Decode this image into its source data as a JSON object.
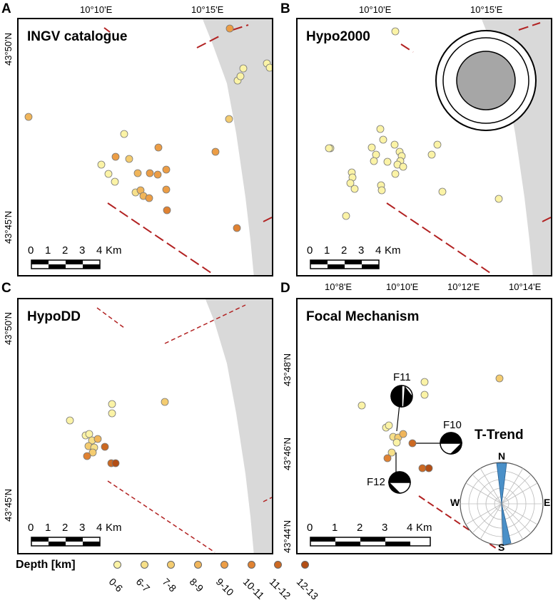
{
  "panels": {
    "a": {
      "letter": "A",
      "title": "INGV catalogue"
    },
    "b": {
      "letter": "B",
      "title": "Hypo2000"
    },
    "c": {
      "letter": "C",
      "title": "HypoDD"
    },
    "d": {
      "letter": "D",
      "title": "Focal Mechanism"
    }
  },
  "axes": {
    "top_lon_ab": [
      "10°10'E",
      "10°15'E"
    ],
    "left_lat_a": [
      "43°50'N",
      "43°45'N"
    ],
    "left_lat_c": [
      "43°50'N",
      "43°45'N"
    ],
    "top_lon_d": [
      "10°8'E",
      "10°10'E",
      "10°12'E",
      "10°14'E"
    ],
    "left_lat_d": [
      "43°48'N",
      "43°46'N",
      "43°44'N"
    ]
  },
  "scale": {
    "numbers": [
      "0",
      "1",
      "2",
      "3",
      "4"
    ],
    "unit": "Km"
  },
  "focal": {
    "events": [
      "F11",
      "F10",
      "F12"
    ],
    "rose_title": "T-Trend",
    "rose_dirs": {
      "n": "N",
      "s": "S",
      "e": "E",
      "w": "W"
    }
  },
  "legend": {
    "title": "Depth [km]",
    "items": [
      {
        "label": "0-6",
        "color": "#fbf3a6"
      },
      {
        "label": "6-7",
        "color": "#f7e089"
      },
      {
        "label": "7-8",
        "color": "#f4cc70"
      },
      {
        "label": "8-9",
        "color": "#f0b55a"
      },
      {
        "label": "9-10",
        "color": "#ec9d45"
      },
      {
        "label": "10-11",
        "color": "#e08232"
      },
      {
        "label": "11-12",
        "color": "#cc6922"
      },
      {
        "label": "12-13",
        "color": "#b34e14"
      }
    ]
  },
  "colors": {
    "fault": "#b22222",
    "coast": "#d9d9d9",
    "rose_petal": "#4a90c8"
  }
}
